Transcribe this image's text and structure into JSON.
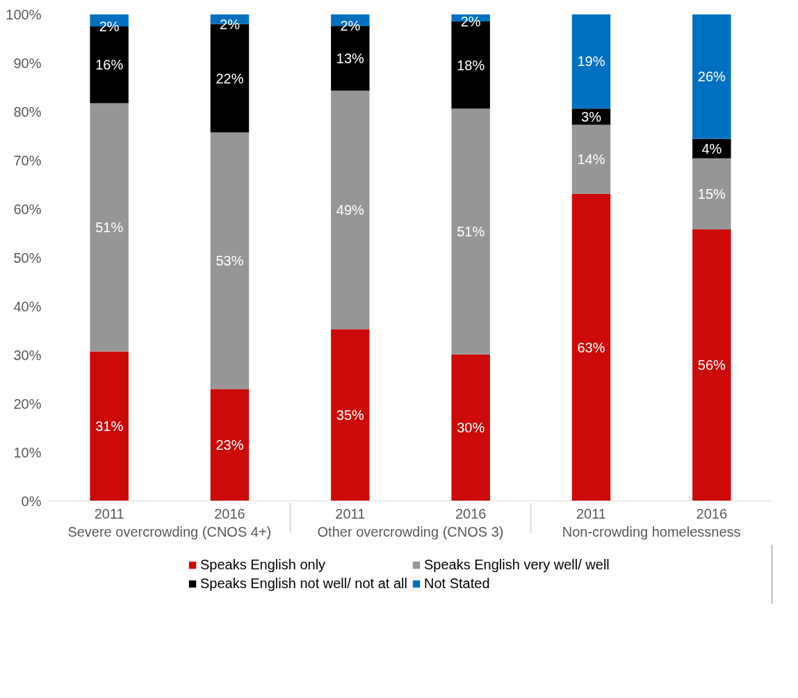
{
  "chart_data": {
    "type": "bar",
    "stacked": true,
    "categories": [
      "2011",
      "2016",
      "2011",
      "2016",
      "2011",
      "2016"
    ],
    "annotations": [
      "Severe overcrowding (CNOS 4+)",
      "Other overcrowding (CNOS 3)",
      "Non-crowding homelessness"
    ],
    "series": [
      {
        "name": "Speaks English only",
        "color": "#cc0a0a",
        "values": [
          30.7,
          23.0,
          35.3,
          30.1,
          63.1,
          55.8
        ],
        "value_labels": [
          "31%",
          "23%",
          "35%",
          "30%",
          "63%",
          "56%"
        ]
      },
      {
        "name": "Speaks English very well/ well",
        "color": "#969696",
        "values": [
          51.0,
          52.7,
          49.0,
          50.5,
          14.2,
          14.6
        ],
        "value_labels": [
          "51%",
          "53%",
          "49%",
          "51%",
          "14%",
          "15%"
        ]
      },
      {
        "name": "Speaks English not well/ not at all",
        "color": "#000000",
        "values": [
          15.8,
          22.3,
          13.3,
          17.9,
          3.3,
          4.0
        ],
        "value_labels": [
          "16%",
          "22%",
          "13%",
          "18%",
          "3%",
          "4%"
        ]
      },
      {
        "name": "Not Stated",
        "color": "#0070c0",
        "values": [
          2.5,
          2.0,
          2.4,
          1.5,
          19.4,
          25.6
        ],
        "value_labels": [
          "2%",
          "2%",
          "2%",
          "2%",
          "19%",
          "26%"
        ]
      }
    ],
    "ylim": [
      0,
      100
    ],
    "yticks": [
      {
        "value": 0,
        "label": "0%"
      },
      {
        "value": 10,
        "label": "10%"
      },
      {
        "value": 20,
        "label": "20%"
      },
      {
        "value": 30,
        "label": "30%"
      },
      {
        "value": 40,
        "label": "40%"
      },
      {
        "value": 50,
        "label": "50%"
      },
      {
        "value": 60,
        "label": "60%"
      },
      {
        "value": 70,
        "label": "70%"
      },
      {
        "value": 80,
        "label": "80%"
      },
      {
        "value": 90,
        "label": "90%"
      },
      {
        "value": 100,
        "label": "100%"
      }
    ],
    "legend": "bottom",
    "grid": false
  }
}
